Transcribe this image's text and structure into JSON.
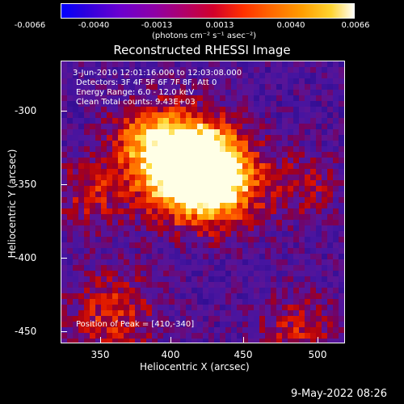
{
  "colorbar": {
    "tick_labels": [
      "-0.0066",
      "-0.0040",
      "-0.0013",
      "0.0013",
      "0.0040",
      "0.0066"
    ],
    "unit_label": "(photons cm⁻² s⁻¹ asec⁻²)"
  },
  "image": {
    "title": "Reconstructed RHESSI Image",
    "info": [
      "3-Jun-2010 12:01:16.000 to 12:03:08.000",
      "Detectors: 3F 4F 5F 6F 7F 8F, Att 0",
      "Energy Range: 6.0 - 12.0 keV",
      "Clean     Total counts: 9.43E+03"
    ],
    "peak_label": "Position of Peak = [410,-340]"
  },
  "axes": {
    "xlabel": "Heliocentric X (arcsec)",
    "ylabel": "Heliocentric Y (arcsec)",
    "xticks": [
      "350",
      "400",
      "450",
      "500"
    ],
    "yticks": [
      "-300",
      "-350",
      "-400",
      "-450"
    ]
  },
  "footer": {
    "timestamp": "9-May-2022 08:26"
  },
  "colors": {
    "background": "#000000",
    "text": "#ffffff",
    "low": "#0000ff",
    "high": "#ffffff"
  }
}
